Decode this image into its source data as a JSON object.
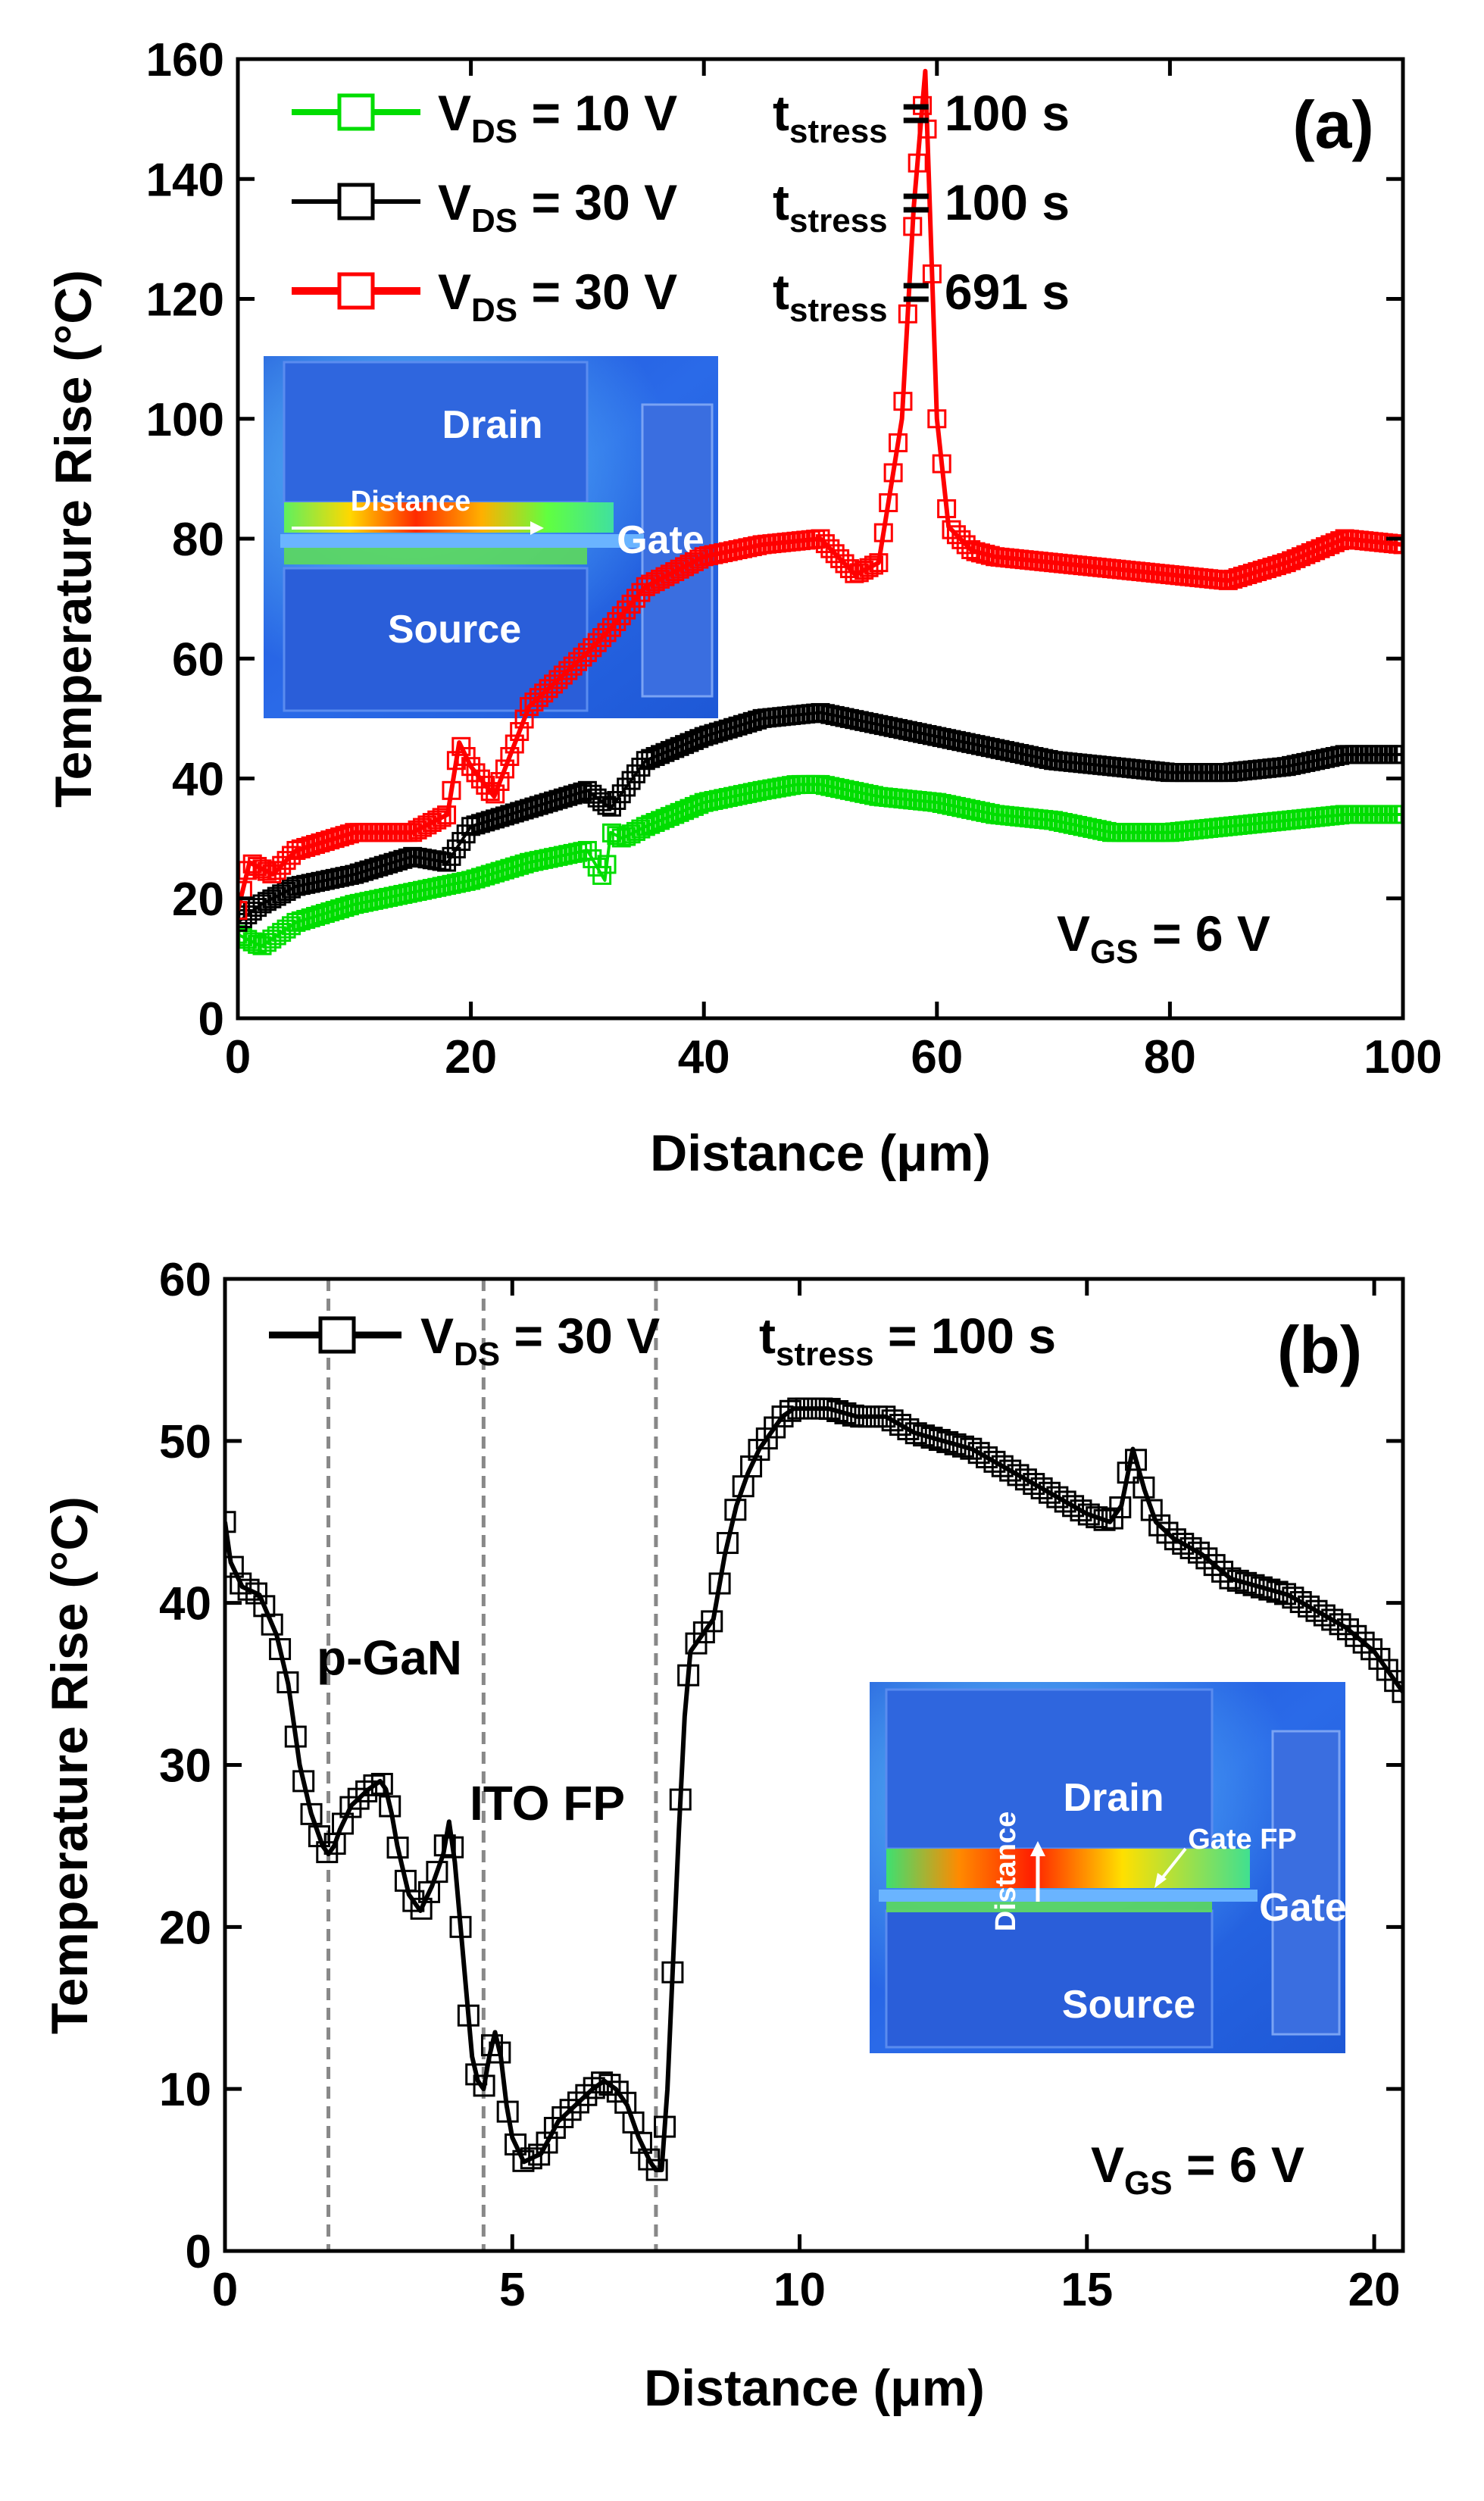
{
  "chart_data": [
    {
      "type": "scatter",
      "panel_label": "(a)",
      "xlabel": "Distance (μm)",
      "ylabel": "Temperature Rise (°C)",
      "xlim": [
        0,
        100
      ],
      "ylim": [
        0,
        160
      ],
      "xticks": [
        0,
        20,
        40,
        60,
        80,
        100
      ],
      "yticks": [
        0,
        20,
        40,
        60,
        80,
        100,
        120,
        140,
        160
      ],
      "annotation": {
        "main": "V",
        "sub": "GS",
        "rest": " = 6 V"
      },
      "series": [
        {
          "name": "VDS = 10 V  tstress = 100 s",
          "legend": {
            "v_main": "V",
            "v_sub": "DS",
            "v_rest": " = 10 V  ",
            "t_main": "t",
            "t_sub": "stress",
            "t_rest": " = 100 s"
          },
          "color": "#00dd00",
          "x": [
            0,
            2,
            5,
            10,
            15,
            20,
            25,
            30,
            31.5,
            32,
            33,
            35,
            40,
            45,
            48,
            50,
            55,
            60,
            65,
            70,
            75,
            80,
            85,
            90,
            95,
            100
          ],
          "y": [
            14,
            12,
            16,
            19,
            21,
            23,
            26,
            28,
            23,
            31,
            30,
            32,
            36,
            38,
            39,
            39,
            37,
            36,
            34,
            33,
            31,
            31,
            32,
            33,
            34,
            34
          ]
        },
        {
          "name": "VDS = 30 V  tstress = 100 s",
          "legend": {
            "v_main": "V",
            "v_sub": "DS",
            "v_rest": " = 30 V  ",
            "t_main": "t",
            "t_sub": "stress",
            "t_rest": " = 100 s"
          },
          "color": "#000000",
          "x": [
            0,
            2,
            5,
            10,
            15,
            18,
            20,
            25,
            30,
            32,
            35,
            40,
            45,
            50,
            55,
            60,
            65,
            70,
            75,
            80,
            85,
            90,
            95,
            100
          ],
          "y": [
            16,
            19,
            22,
            24,
            27,
            26,
            32,
            35,
            38,
            35,
            43,
            47,
            50,
            51,
            49,
            47,
            45,
            43,
            42,
            41,
            41,
            42,
            44,
            44
          ]
        },
        {
          "name": "VDS = 30 V  tstress = 691 s",
          "legend": {
            "v_main": "V",
            "v_sub": "DS",
            "v_rest": " = 30 V  ",
            "t_main": "t",
            "t_sub": "stress",
            "t_rest": " = 691 s"
          },
          "color": "#ff0000",
          "x": [
            0,
            1,
            3,
            5,
            10,
            15,
            18,
            19,
            20,
            22,
            25,
            30,
            32,
            35,
            40,
            45,
            50,
            53,
            55,
            57,
            58,
            59,
            60,
            61,
            63,
            65,
            70,
            75,
            80,
            85,
            90,
            95,
            100
          ],
          "y": [
            18,
            26,
            24,
            28,
            31,
            31,
            34,
            46,
            42,
            37,
            52,
            61,
            65,
            72,
            77,
            79,
            80,
            74,
            76,
            100,
            135,
            158,
            100,
            82,
            78,
            77,
            76,
            75,
            74,
            73,
            76,
            80,
            79
          ]
        }
      ],
      "inset": {
        "drain": "Drain",
        "source": "Source",
        "gate": "Gate",
        "distance": "Distance"
      }
    },
    {
      "type": "line",
      "panel_label": "(b)",
      "xlabel": "Distance (μm)",
      "ylabel": "Temperature Rise (°C)",
      "xlim": [
        0,
        20.5
      ],
      "ylim": [
        0,
        60
      ],
      "xticks": [
        0,
        5,
        10,
        15,
        20
      ],
      "yticks": [
        0,
        10,
        20,
        30,
        40,
        50,
        60
      ],
      "vlines": [
        1.8,
        4.5,
        7.5
      ],
      "annotations": [
        "p-GaN",
        "ITO FP"
      ],
      "vgs": {
        "main": "V",
        "sub": "GS",
        "rest": " = 6 V"
      },
      "series": [
        {
          "name": "VDS = 30 V  tstress = 100 s",
          "legend": {
            "v_main": "V",
            "v_sub": "DS",
            "v_rest": " = 30 V  ",
            "t_main": "t",
            "t_sub": "stress",
            "t_rest": " = 100 s"
          },
          "color": "#000000",
          "x": [
            0,
            0.1,
            0.3,
            0.6,
            0.9,
            1.1,
            1.3,
            1.5,
            1.7,
            1.8,
            1.9,
            2.0,
            2.2,
            2.5,
            2.7,
            2.8,
            2.9,
            3.0,
            3.2,
            3.4,
            3.6,
            3.8,
            3.9,
            4.0,
            4.1,
            4.2,
            4.3,
            4.4,
            4.5,
            4.6,
            4.7,
            4.8,
            4.9,
            5.0,
            5.2,
            5.5,
            5.8,
            6.1,
            6.4,
            6.6,
            6.8,
            7.0,
            7.2,
            7.4,
            7.5,
            7.6,
            7.7,
            7.8,
            7.9,
            8.0,
            8.1,
            8.3,
            8.5,
            8.7,
            8.9,
            9.1,
            9.3,
            9.5,
            9.7,
            9.9,
            10.1,
            10.5,
            11.0,
            11.5,
            12.0,
            12.5,
            13.0,
            13.5,
            14.0,
            14.5,
            15.0,
            15.4,
            15.6,
            15.8,
            16.0,
            16.2,
            16.5,
            17.0,
            17.5,
            18.0,
            18.5,
            19.0,
            19.5,
            20.0,
            20.3,
            20.5
          ],
          "y": [
            45,
            42.5,
            41,
            40.5,
            38,
            35,
            30,
            27,
            25,
            24.5,
            25,
            26,
            27.5,
            28.5,
            29,
            28.5,
            27,
            25,
            22,
            21,
            22.5,
            24.5,
            26.5,
            24,
            20,
            16,
            12,
            10.5,
            10,
            12,
            13.5,
            12,
            9,
            7,
            5.5,
            6,
            8,
            9,
            10,
            10.5,
            10,
            9,
            7,
            5.5,
            5,
            5,
            10,
            18,
            26,
            33,
            37,
            38,
            39,
            43,
            46,
            48,
            49.5,
            50.5,
            51.5,
            52,
            52,
            52,
            51.5,
            51.5,
            50.5,
            50,
            49.5,
            48.5,
            47.5,
            46.5,
            45.5,
            45,
            46,
            49.5,
            47,
            45,
            44,
            43,
            41.5,
            41,
            40.5,
            39.5,
            38.5,
            37,
            35.5,
            34.5
          ]
        }
      ],
      "inset": {
        "drain": "Drain",
        "source": "Source",
        "gate": "Gate",
        "distance": "Distance",
        "gate_fp": "Gate FP"
      }
    }
  ]
}
